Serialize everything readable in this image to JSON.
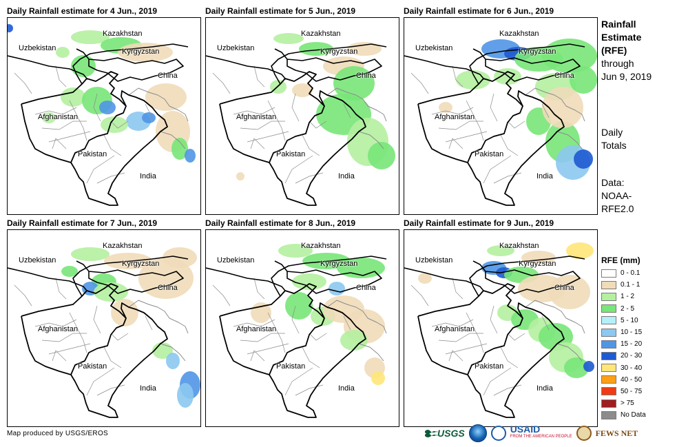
{
  "panels": [
    {
      "title": "Daily Rainfall estimate for 4 Jun., 2019",
      "day": 0
    },
    {
      "title": "Daily Rainfall estimate for 5 Jun., 2019",
      "day": 1
    },
    {
      "title": "Daily Rainfall estimate for 6 Jun., 2019",
      "day": 2
    },
    {
      "title": "Daily Rainfall estimate for 7 Jun., 2019",
      "day": 3
    },
    {
      "title": "Daily Rainfall estimate for 8 Jun., 2019",
      "day": 4
    },
    {
      "title": "Daily Rainfall estimate for 9 Jun., 2019",
      "day": 5
    }
  ],
  "country_labels": {
    "kazakhstan": "Kazakhstan",
    "uzbekistan": "Uzbekistan",
    "kyrgyzstan": "Kyrgyzstan",
    "china": "China",
    "afghanistan": "Afghanistan",
    "pakistan": "Pakistan",
    "india": "India"
  },
  "side": {
    "title_1": "Rainfall",
    "title_2": "Estimate",
    "title_3": "(RFE)",
    "through_1": "through",
    "through_2": "Jun 9, 2019",
    "daily_1": "Daily",
    "daily_2": "Totals",
    "data_1": "Data:",
    "data_2": "NOAA-",
    "data_3": "RFE2.0"
  },
  "legend": {
    "title": "RFE (mm)",
    "items": [
      {
        "label": "0 - 0.1",
        "color": "#ffffff"
      },
      {
        "label": "0.1 - 1",
        "color": "#f0dcb9"
      },
      {
        "label": "1 - 2",
        "color": "#b4f0a0"
      },
      {
        "label": "2 - 5",
        "color": "#78e678"
      },
      {
        "label": "5 - 10",
        "color": "#b4f0fa"
      },
      {
        "label": "10 - 15",
        "color": "#8cc8f0"
      },
      {
        "label": "15 - 20",
        "color": "#5096e6"
      },
      {
        "label": "20 - 30",
        "color": "#1e5ad2"
      },
      {
        "label": "30 - 40",
        "color": "#ffe678"
      },
      {
        "label": "40 - 50",
        "color": "#ffa014"
      },
      {
        "label": "50 - 75",
        "color": "#f03c14"
      },
      {
        "label": "> 75",
        "color": "#a01e1e"
      },
      {
        "label": "No Data",
        "color": "#8c8c8c"
      }
    ]
  },
  "credit": "Map produced by USGS/EROS",
  "logos": {
    "usgs": "USGS",
    "usaid": "USAID",
    "usaid_tagline": "FROM THE AMERICAN PEOPLE",
    "fews": "FEWS NET"
  }
}
